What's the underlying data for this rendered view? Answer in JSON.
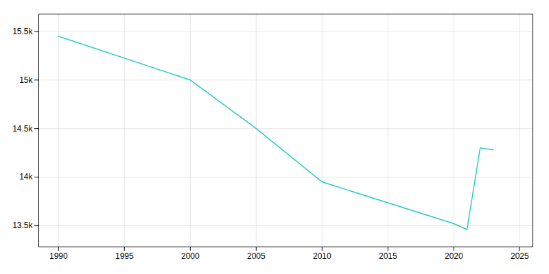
{
  "chart_data": {
    "type": "line",
    "x": [
      1990,
      2000,
      2005,
      2010,
      2020,
      2021,
      2022,
      2023
    ],
    "values": [
      15450,
      15000,
      14500,
      13950,
      13520,
      13460,
      14300,
      14280
    ],
    "color": "#2ec8c8",
    "xlim": [
      1988.5,
      2026
    ],
    "xticks": [
      1990,
      1995,
      2000,
      2005,
      2010,
      2015,
      2020,
      2025
    ],
    "ylim": [
      13280,
      15680
    ],
    "yticks": [
      {
        "value": 13500,
        "label": "13.5k"
      },
      {
        "value": 14000,
        "label": "14k"
      },
      {
        "value": 14500,
        "label": "14.5k"
      },
      {
        "value": 15000,
        "label": "15k"
      },
      {
        "value": 15500,
        "label": "15.5k"
      }
    ],
    "grid": true
  }
}
